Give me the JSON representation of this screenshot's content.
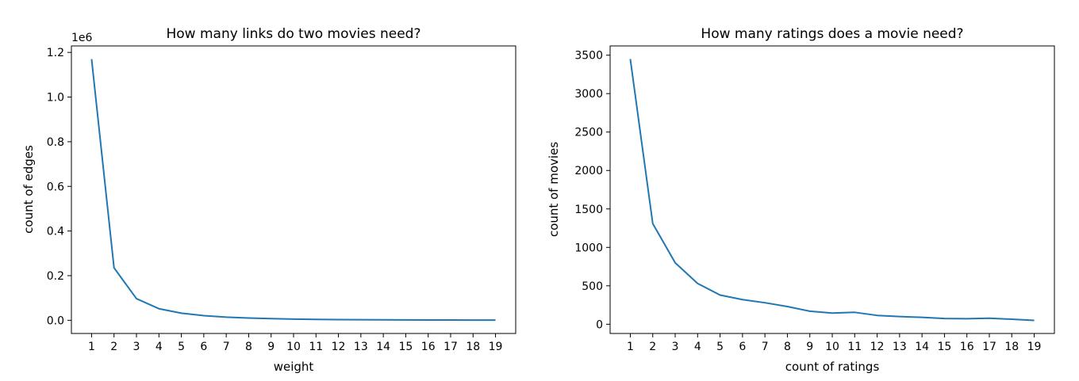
{
  "chart_data": [
    {
      "type": "line",
      "title": "How many links do two movies need?",
      "xlabel": "weight",
      "ylabel": "count of edges",
      "offset_text": "1e6",
      "x": [
        1,
        2,
        3,
        4,
        5,
        6,
        7,
        8,
        9,
        10,
        11,
        12,
        13,
        14,
        15,
        16,
        17,
        18,
        19
      ],
      "series": [
        {
          "values": [
            1170000,
            235000,
            97000,
            52000,
            32000,
            21000,
            14000,
            10000,
            7500,
            5500,
            4200,
            3300,
            2600,
            2100,
            1700,
            1400,
            1200,
            1000,
            800
          ]
        }
      ],
      "xlim": [
        0.1,
        19.9
      ],
      "ylim": [
        -59000,
        1229000
      ],
      "xticks": [
        1,
        2,
        3,
        4,
        5,
        6,
        7,
        8,
        9,
        10,
        11,
        12,
        13,
        14,
        15,
        16,
        17,
        18,
        19
      ],
      "yticks": [
        0,
        200000,
        400000,
        600000,
        800000,
        1000000,
        1200000
      ],
      "ytick_labels": [
        "0.0",
        "0.2",
        "0.4",
        "0.6",
        "0.8",
        "1.0",
        "1.2"
      ],
      "grid": false,
      "line_color": "#1f77b4"
    },
    {
      "type": "line",
      "title": "How many ratings does a movie need?",
      "xlabel": "count of ratings",
      "ylabel": "count of movies",
      "x": [
        1,
        2,
        3,
        4,
        5,
        6,
        7,
        8,
        9,
        10,
        11,
        12,
        13,
        14,
        15,
        16,
        17,
        18,
        19
      ],
      "series": [
        {
          "values": [
            3450,
            1310,
            800,
            530,
            380,
            320,
            280,
            230,
            170,
            145,
            155,
            115,
            100,
            90,
            75,
            72,
            78,
            65,
            50
          ]
        }
      ],
      "xlim": [
        0.1,
        19.9
      ],
      "ylim": [
        -120,
        3620
      ],
      "xticks": [
        1,
        2,
        3,
        4,
        5,
        6,
        7,
        8,
        9,
        10,
        11,
        12,
        13,
        14,
        15,
        16,
        17,
        18,
        19
      ],
      "yticks": [
        0,
        500,
        1000,
        1500,
        2000,
        2500,
        3000,
        3500
      ],
      "ytick_labels": [
        "0",
        "500",
        "1000",
        "1500",
        "2000",
        "2500",
        "3000",
        "3500"
      ],
      "grid": false,
      "line_color": "#1f77b4"
    }
  ]
}
